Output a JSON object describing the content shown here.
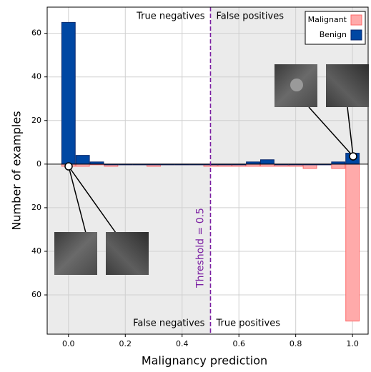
{
  "chart_data": {
    "type": "histogram",
    "bins": [
      -0.025,
      0.025,
      0.075,
      0.125,
      0.175,
      0.225,
      0.275,
      0.325,
      0.375,
      0.425,
      0.475,
      0.525,
      0.575,
      0.625,
      0.675,
      0.725,
      0.775,
      0.825,
      0.875,
      0.925,
      0.975,
      1.025
    ],
    "series": [
      {
        "name": "Malignant",
        "color": "#ffaaaa",
        "edgecolor": "#ff6b6b",
        "values": [
          -1,
          -1,
          0,
          -1,
          0,
          0,
          -1,
          0,
          0,
          0,
          -1,
          -1,
          -1,
          -1,
          -1,
          -1,
          -1,
          -2,
          0,
          -2,
          -72
        ]
      },
      {
        "name": "Benign",
        "color": "#0047a3",
        "edgecolor": "#0a2a6e",
        "values": [
          65,
          4,
          1,
          0,
          0,
          0,
          0,
          0,
          0,
          0,
          0,
          0,
          0,
          1,
          2,
          0,
          0,
          0,
          0,
          1,
          5
        ]
      }
    ],
    "xlabel": "Malignancy prediction",
    "ylabel": "Number of examples",
    "xlim": [
      -0.075,
      1.055
    ],
    "ylim": [
      -78,
      72
    ],
    "xticks": [
      {
        "value": 0,
        "label": "0.0"
      },
      0.2,
      0.4,
      0.6,
      0.8,
      {
        "value": 1,
        "label": "1.0"
      }
    ],
    "yticks": [
      {
        "value": -60,
        "label": "60"
      },
      {
        "value": -40,
        "label": "40"
      },
      {
        "value": -20,
        "label": "20"
      },
      0,
      20,
      40,
      60
    ],
    "grid": true,
    "legend": "upper right",
    "threshold": 0.5,
    "threshold_label": "Threshold = 0.5",
    "threshold_color": "#7b1fa2",
    "quadrant_labels": {
      "top_left": "True negatives",
      "top_right": "False positives",
      "bottom_left": "False negatives",
      "bottom_right": "True positives"
    },
    "shade_color": "#ebebeb"
  }
}
